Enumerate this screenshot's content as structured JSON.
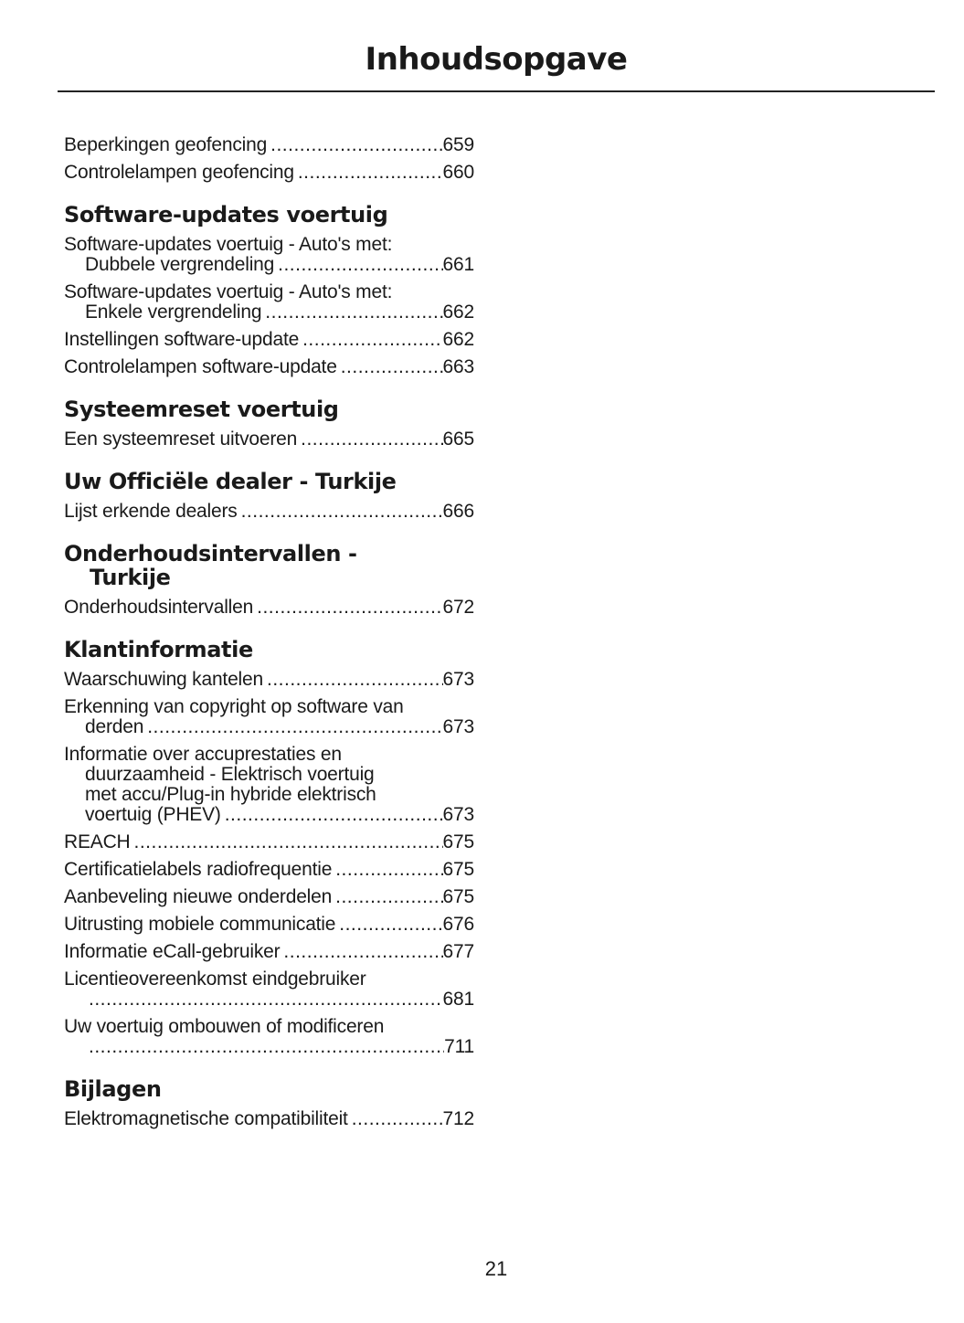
{
  "title": "Inhoudsopgave",
  "sections": [
    {
      "heading": [],
      "entries": [
        {
          "lines": [
            "Beperkingen geofencing"
          ],
          "page": "659"
        },
        {
          "lines": [
            "Controlelampen geofencing"
          ],
          "page": "660"
        }
      ]
    },
    {
      "heading": [
        "Software-updates voertuig"
      ],
      "entries": [
        {
          "lines": [
            "Software-updates voertuig - Auto's met:",
            "Dubbele vergrendeling"
          ],
          "page": "661"
        },
        {
          "lines": [
            "Software-updates voertuig - Auto's met:",
            "Enkele vergrendeling"
          ],
          "page": "662"
        },
        {
          "lines": [
            "Instellingen software-update"
          ],
          "page": "662"
        },
        {
          "lines": [
            "Controlelampen software-update"
          ],
          "page": "663"
        }
      ]
    },
    {
      "heading": [
        "Systeemreset voertuig"
      ],
      "entries": [
        {
          "lines": [
            "Een systeemreset uitvoeren"
          ],
          "page": "665"
        }
      ]
    },
    {
      "heading": [
        "Uw Officiële dealer - Turkije"
      ],
      "entries": [
        {
          "lines": [
            "Lijst erkende dealers"
          ],
          "page": "666"
        }
      ]
    },
    {
      "heading": [
        "Onderhoudsintervallen -",
        "Turkije"
      ],
      "entries": [
        {
          "lines": [
            "Onderhoudsintervallen"
          ],
          "page": "672"
        }
      ]
    },
    {
      "heading": [
        "Klantinformatie"
      ],
      "entries": [
        {
          "lines": [
            "Waarschuwing kantelen"
          ],
          "page": "673"
        },
        {
          "lines": [
            "Erkenning van copyright op software van",
            "derden"
          ],
          "page": "673"
        },
        {
          "lines": [
            "Informatie over accuprestaties en",
            "duurzaamheid - Elektrisch voertuig",
            "met accu/Plug-in hybride elektrisch",
            "voertuig (PHEV)"
          ],
          "page": "673"
        },
        {
          "lines": [
            "REACH"
          ],
          "page": "675"
        },
        {
          "lines": [
            "Certificatielabels radiofrequentie"
          ],
          "page": "675"
        },
        {
          "lines": [
            "Aanbeveling nieuwe onderdelen"
          ],
          "page": "675"
        },
        {
          "lines": [
            "Uitrusting mobiele communicatie"
          ],
          "page": "676"
        },
        {
          "lines": [
            "Informatie eCall-gebruiker"
          ],
          "page": "677"
        },
        {
          "lines": [
            "Licentieovereenkomst eindgebruiker",
            ""
          ],
          "page": "681"
        },
        {
          "lines": [
            "Uw voertuig ombouwen of modificeren",
            ""
          ],
          "page": "711"
        }
      ]
    },
    {
      "heading": [
        "Bijlagen"
      ],
      "entries": [
        {
          "lines": [
            "Elektromagnetische compatibiliteit"
          ],
          "page": "712"
        }
      ]
    }
  ],
  "page_number": "21"
}
